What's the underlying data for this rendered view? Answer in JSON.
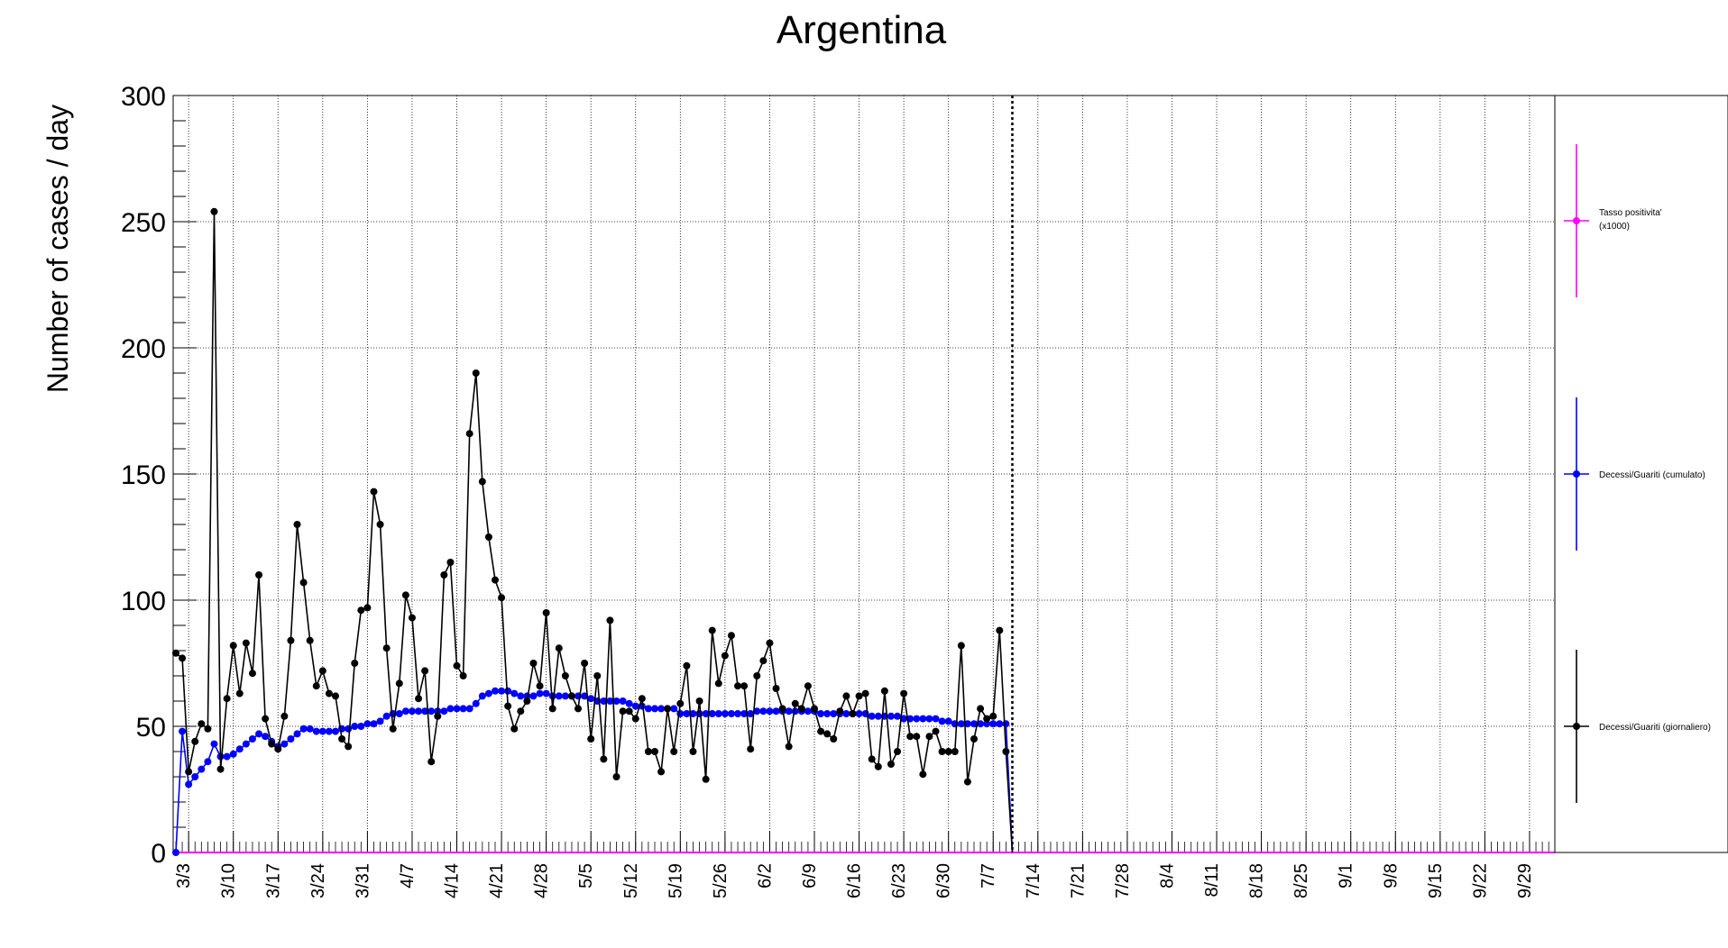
{
  "chart_data": {
    "type": "line",
    "title": "Argentina",
    "xlabel": "",
    "ylabel": "Number of cases / day",
    "ylim": [
      0,
      300
    ],
    "y_ticks": [
      "0",
      "50",
      "100",
      "150",
      "200",
      "250",
      "300"
    ],
    "x_tick_labels": [
      "3/3",
      "3/10",
      "3/17",
      "3/24",
      "3/31",
      "4/7",
      "4/14",
      "4/21",
      "4/28",
      "5/5",
      "5/12",
      "5/19",
      "5/26",
      "6/2",
      "6/9",
      "6/16",
      "6/23",
      "6/30",
      "7/7",
      "7/14",
      "7/21",
      "7/28",
      "8/4",
      "8/11",
      "8/18",
      "8/25",
      "9/1",
      "9/8",
      "9/15",
      "9/22",
      "9/29"
    ],
    "x_range_days": [
      0,
      216
    ],
    "current_day_marker": 131,
    "grid": true,
    "legend_position": "right-panel",
    "series": [
      {
        "name": "Decessi/Guariti (giornaliero)",
        "color": "#000000",
        "values": [
          79,
          77,
          32,
          44,
          51,
          49,
          254,
          33,
          61,
          82,
          63,
          83,
          71,
          110,
          53,
          43,
          41,
          54,
          84,
          130,
          107,
          84,
          66,
          72,
          63,
          62,
          45,
          42,
          75,
          96,
          97,
          143,
          130,
          81,
          49,
          67,
          102,
          93,
          61,
          72,
          36,
          54,
          110,
          115,
          74,
          70,
          166,
          190,
          147,
          125,
          108,
          101,
          58,
          49,
          56,
          60,
          75,
          66,
          95,
          57,
          81,
          70,
          62,
          57,
          75,
          45,
          70,
          37,
          92,
          30,
          56,
          56,
          53,
          61,
          40,
          40,
          32,
          57,
          40,
          59,
          74,
          40,
          60,
          29,
          88,
          67,
          78,
          86,
          66,
          66,
          41,
          70,
          76,
          83,
          65,
          57,
          42,
          59,
          57,
          66,
          57,
          48,
          47,
          45,
          56,
          62,
          55,
          62,
          63,
          37,
          34,
          64,
          35,
          40,
          63,
          46,
          46,
          31,
          46,
          48,
          40,
          40,
          40,
          82,
          28,
          45,
          57,
          53,
          54,
          88,
          40,
          0
        ]
      },
      {
        "name": "Decessi/Guariti (cumulato)",
        "color": "#0000ff",
        "values": [
          0,
          48,
          27,
          30,
          33,
          36,
          43,
          38,
          38,
          39,
          41,
          43,
          45,
          47,
          46,
          44,
          42,
          43,
          45,
          47,
          49,
          49,
          48,
          48,
          48,
          48,
          49,
          49,
          50,
          50,
          51,
          51,
          52,
          54,
          55,
          55,
          56,
          56,
          56,
          56,
          56,
          56,
          56,
          57,
          57,
          57,
          57,
          59,
          62,
          63,
          64,
          64,
          64,
          63,
          62,
          62,
          62,
          63,
          63,
          62,
          62,
          62,
          62,
          62,
          62,
          61,
          60,
          60,
          60,
          60,
          60,
          59,
          58,
          58,
          57,
          57,
          57,
          57,
          57,
          55,
          55,
          55,
          55,
          55,
          55,
          55,
          55,
          55,
          55,
          55,
          55,
          56,
          56,
          56,
          56,
          56,
          56,
          56,
          56,
          56,
          56,
          55,
          55,
          55,
          55,
          55,
          55,
          55,
          55,
          54,
          54,
          54,
          54,
          54,
          53,
          53,
          53,
          53,
          53,
          53,
          52,
          52,
          51,
          51,
          51,
          51,
          51,
          51,
          51,
          51,
          51,
          0
        ]
      },
      {
        "name": "Tasso positivita' (x1000)",
        "name_line2": "(x1000)",
        "name_line1": "Tasso positivita'",
        "color": "#ff00ff",
        "values": []
      }
    ]
  }
}
